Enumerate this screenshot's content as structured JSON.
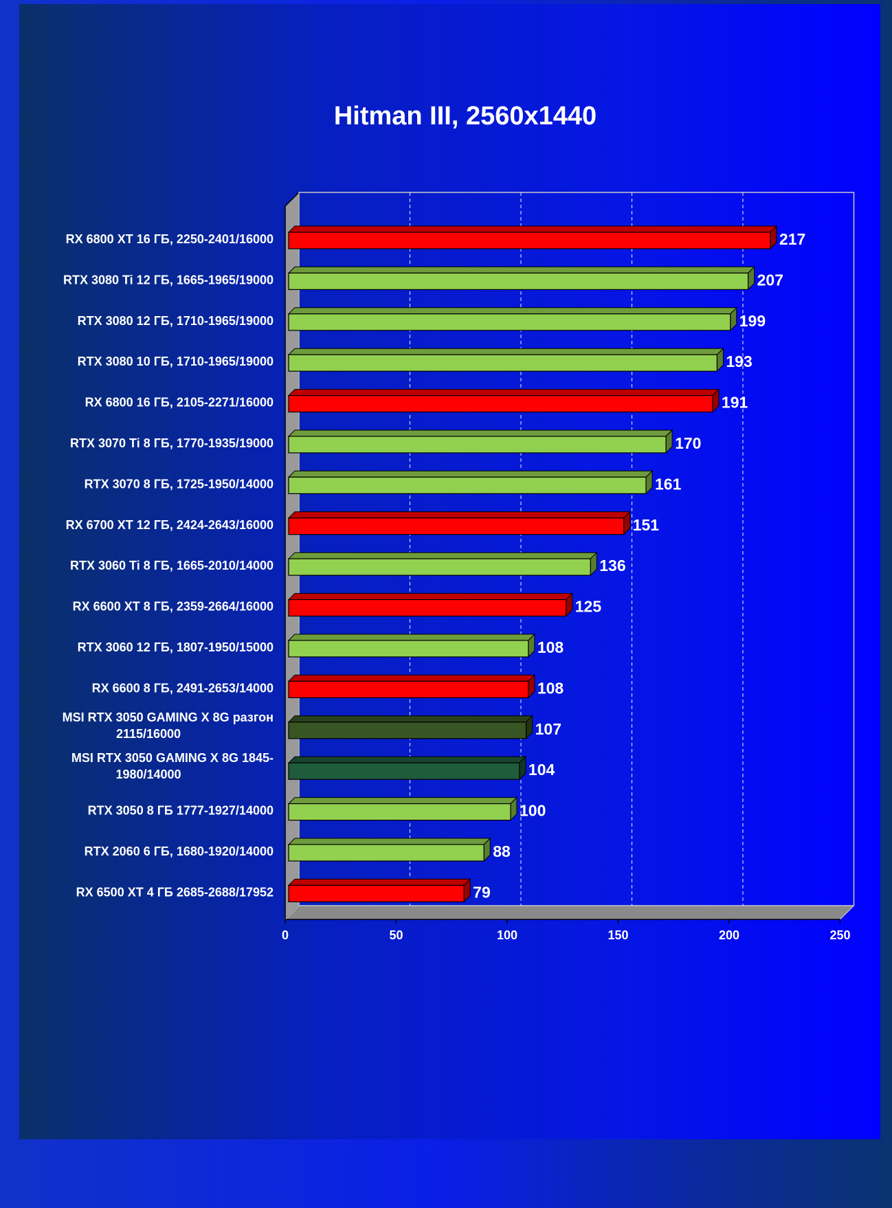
{
  "chart_data": {
    "type": "bar",
    "orientation": "horizontal",
    "title": "Hitman III, 2560x1440",
    "categories": [
      [
        "RX 6800 XT 16 ГБ, 2250-2401/16000"
      ],
      [
        "RTX 3080 Ti 12 ГБ, 1665-1965/19000"
      ],
      [
        "RTX 3080 12 ГБ, 1710-1965/19000"
      ],
      [
        "RTX 3080 10 ГБ, 1710-1965/19000"
      ],
      [
        "RX 6800 16 ГБ, 2105-2271/16000"
      ],
      [
        "RTX 3070 Ti 8 ГБ, 1770-1935/19000"
      ],
      [
        "RTX 3070 8 ГБ, 1725-1950/14000"
      ],
      [
        "RX 6700 XT 12 ГБ, 2424-2643/16000"
      ],
      [
        "RTX 3060 Ti 8 ГБ, 1665-2010/14000"
      ],
      [
        "RX 6600 XT 8 ГБ, 2359-2664/16000"
      ],
      [
        "RTX 3060 12 ГБ, 1807-1950/15000"
      ],
      [
        "RX 6600 8 ГБ, 2491-2653/14000"
      ],
      [
        "MSI  RTX 3050 GAMING  X 8G разгон",
        "2115/16000"
      ],
      [
        "MSI  RTX 3050 GAMING X 8G 1845-",
        "1980/14000"
      ],
      [
        "RTX 3050 8 ГБ 1777-1927/14000"
      ],
      [
        "RTX 2060 6 ГБ, 1680-1920/14000"
      ],
      [
        "RX 6500 XT 4 ГБ 2685-2688/17952"
      ]
    ],
    "values": [
      217,
      207,
      199,
      193,
      191,
      170,
      161,
      151,
      136,
      125,
      108,
      108,
      107,
      104,
      100,
      88,
      79
    ],
    "bar_colors": [
      "#ff0000",
      "#92d050",
      "#92d050",
      "#92d050",
      "#ff0000",
      "#92d050",
      "#92d050",
      "#ff0000",
      "#92d050",
      "#ff0000",
      "#92d050",
      "#ff0000",
      "#375623",
      "#1e5c3c",
      "#92d050",
      "#92d050",
      "#ff0000"
    ],
    "x_ticks": [
      "0",
      "50",
      "100",
      "150",
      "200",
      "250"
    ],
    "xlim": [
      0,
      250
    ],
    "grid": "vertical dashed",
    "legend": "none"
  }
}
